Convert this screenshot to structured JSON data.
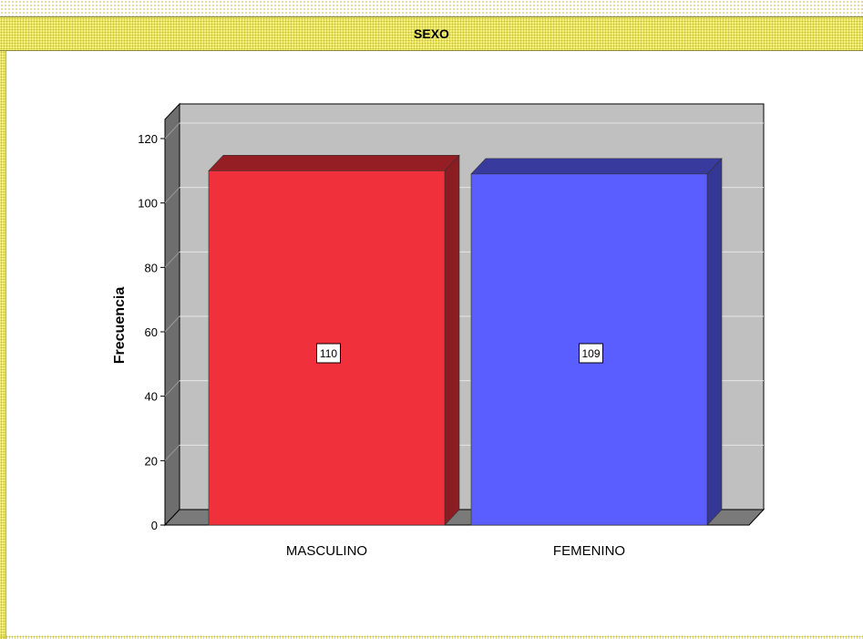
{
  "header": {
    "title": "SEXO"
  },
  "chart_data": {
    "type": "bar",
    "title": "SEXO",
    "xlabel": "",
    "ylabel": "Frecuencia",
    "categories": [
      "MASCULINO",
      "FEMENINO"
    ],
    "values": [
      110,
      109
    ],
    "data_labels": [
      "110",
      "109"
    ],
    "ylim": [
      0,
      120
    ],
    "yticks": [
      "0",
      "20",
      "40",
      "60",
      "80",
      "100",
      "120"
    ],
    "grid": true,
    "three_d": true,
    "colors": {
      "MASCULINO": "#f0303a",
      "FEMENINO": "#5a5eff",
      "plot_background": "#c0c0c0",
      "floor": "#7a7a7a"
    }
  }
}
